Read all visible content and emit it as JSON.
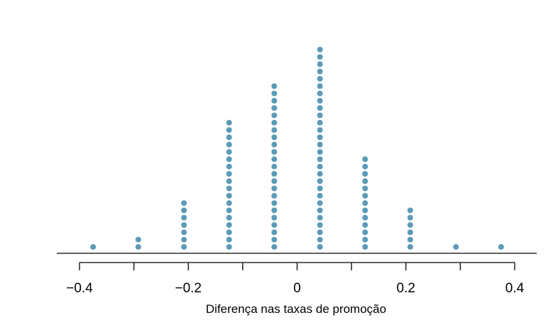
{
  "chart_data": {
    "type": "scatter",
    "subtype": "dot-plot",
    "title": "",
    "xlabel": "Diferença nas taxas de promoção",
    "ylabel": "",
    "xlim": [
      -0.44,
      0.44
    ],
    "xticks": [
      -0.4,
      -0.3,
      -0.2,
      -0.1,
      0,
      0.1,
      0.2,
      0.3,
      0.4
    ],
    "xtick_labels": [
      "−0.4",
      "",
      "−0.2",
      "",
      "0",
      "",
      "0.2",
      "",
      "0.4"
    ],
    "grid": false,
    "legend": "none",
    "point_color": "#5b9bb8",
    "x": [
      -0.375,
      -0.292,
      -0.208,
      -0.125,
      -0.042,
      0.042,
      0.125,
      0.208,
      0.292,
      0.375
    ],
    "counts": [
      1,
      2,
      7,
      18,
      23,
      28,
      13,
      6,
      1,
      1
    ]
  }
}
